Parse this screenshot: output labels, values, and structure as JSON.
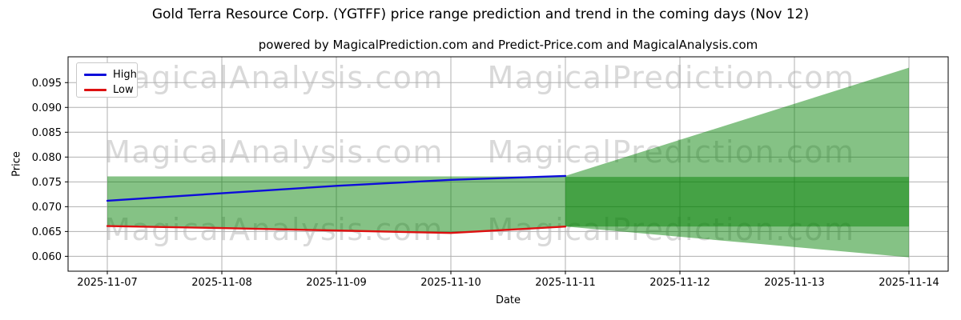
{
  "header": {
    "title": "Gold Terra Resource Corp. (YGTFF) price range prediction and trend in the coming days (Nov 12)",
    "subtitle": "powered by MagicalPrediction.com and Predict-Price.com and MagicalAnalysis.com"
  },
  "chart_data": {
    "type": "line",
    "title": "Gold Terra Resource Corp. (YGTFF) price range prediction and trend in the coming days (Nov 12)",
    "subtitle": "powered by MagicalPrediction.com and Predict-Price.com and MagicalAnalysis.com",
    "xlabel": "Date",
    "ylabel": "Price",
    "x_tick_labels": [
      "2025-11-07",
      "2025-11-08",
      "2025-11-09",
      "2025-11-10",
      "2025-11-11",
      "2025-11-12",
      "2025-11-13",
      "2025-11-14"
    ],
    "y_ticks": [
      0.095,
      0.09,
      0.085,
      0.08,
      0.075,
      0.07,
      0.065,
      0.06
    ],
    "ylim": [
      0.057,
      0.1002
    ],
    "grid": true,
    "grid_color": "#b0b0b0",
    "legend_position": "upper-left",
    "series": [
      {
        "name": "High",
        "color": "#0d0dda",
        "x_idx": [
          0,
          1,
          2,
          3,
          4
        ],
        "values": [
          0.0712,
          0.0727,
          0.0742,
          0.0754,
          0.0762
        ]
      },
      {
        "name": "Low",
        "color": "#dd1111",
        "x_idx": [
          0,
          1,
          2,
          3,
          4
        ],
        "values": [
          0.0661,
          0.0657,
          0.0652,
          0.0647,
          0.066
        ]
      }
    ],
    "shading": {
      "fill_color": "#008000",
      "fill_alpha": 0.48,
      "history_band": {
        "x_start": 0,
        "x_end": 4,
        "top": 0.0761,
        "bottom_follows": "Low"
      },
      "forecast_band": {
        "x_start": 4,
        "x_end": 7,
        "top": 0.076,
        "bottom": 0.066
      },
      "forecast_fan": {
        "x_start": 4,
        "x_end": 7,
        "top_start": 0.0762,
        "top_end": 0.098,
        "bottom_start": 0.066,
        "bottom_end": 0.0598
      }
    },
    "watermarks": {
      "texts": [
        "MagicalAnalysis.com",
        "MagicalPrediction.com"
      ],
      "color": "#d9d9d9"
    }
  }
}
